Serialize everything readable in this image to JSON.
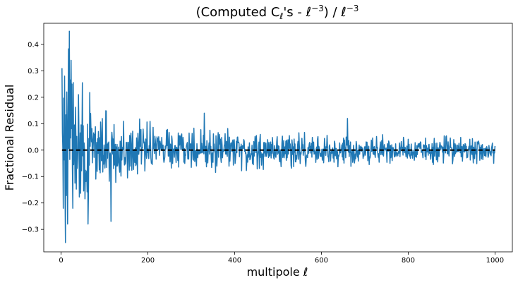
{
  "chart_data": {
    "type": "line",
    "title": {
      "prefix": "(Computed C",
      "sub": "ℓ",
      "mid": "'s - ℓ",
      "sup1": "−3",
      "mid2": ") / ℓ",
      "sup2": "−3"
    },
    "xlabel": "multipole ℓ",
    "ylabel": "Fractional Residual",
    "xlim": [
      -40,
      1040
    ],
    "ylim": [
      -0.385,
      0.48
    ],
    "xticks": [
      0,
      200,
      400,
      600,
      800,
      1000
    ],
    "yticks": [
      -0.3,
      -0.2,
      -0.1,
      0.0,
      0.1,
      0.2,
      0.3,
      0.4
    ],
    "xtick_labels": [
      "0",
      "200",
      "400",
      "600",
      "800",
      "1000"
    ],
    "ytick_labels": [
      "−0.3",
      "−0.2",
      "−0.1",
      "0.0",
      "0.1",
      "0.2",
      "0.3",
      "0.4"
    ],
    "grid": false,
    "series": [
      {
        "style": "solid",
        "color": "#1f77b4",
        "x_range": [
          2,
          1000
        ],
        "envelope": [
          [
            2,
            0.3
          ],
          [
            20,
            0.4
          ],
          [
            50,
            0.25
          ],
          [
            100,
            0.15
          ],
          [
            200,
            0.11
          ],
          [
            300,
            0.09
          ],
          [
            500,
            0.07
          ],
          [
            700,
            0.06
          ],
          [
            1000,
            0.05
          ]
        ],
        "peaks": [
          [
            2,
            0.31
          ],
          [
            5,
            -0.22
          ],
          [
            8,
            0.28
          ],
          [
            10,
            -0.35
          ],
          [
            13,
            0.22
          ],
          [
            15,
            -0.28
          ],
          [
            19,
            0.45
          ],
          [
            23,
            0.34
          ],
          [
            27,
            -0.22
          ],
          [
            40,
            0.21
          ],
          [
            62,
            -0.28
          ],
          [
            115,
            -0.27
          ],
          [
            330,
            0.14
          ],
          [
            660,
            0.12
          ]
        ]
      },
      {
        "style": "dashed",
        "color": "#000000",
        "x": [
          2,
          1000
        ],
        "y": [
          0.0,
          0.0
        ]
      }
    ]
  }
}
